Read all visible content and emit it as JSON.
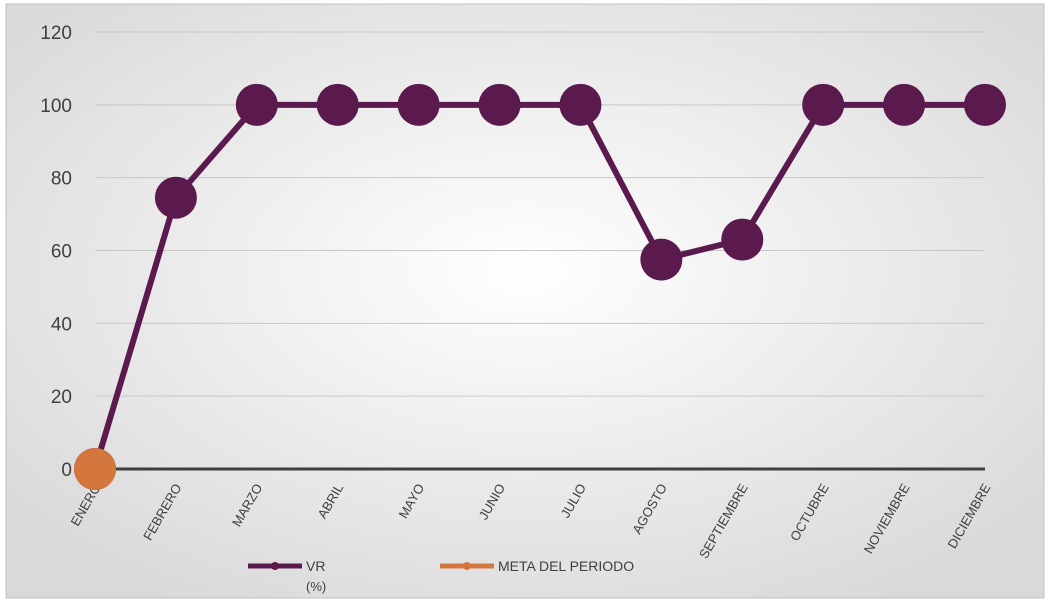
{
  "chart_data": {
    "type": "line",
    "title": "",
    "xlabel": "",
    "ylabel": "",
    "categories": [
      "ENERO",
      "FEBRERO",
      "MARZO",
      "ABRIL",
      "MAYO",
      "JUNIO",
      "JULIO",
      "AGOSTO",
      "SEPTIEMBRE",
      "OCTUBRE",
      "NOVIEMBRE",
      "DICIEMBRE"
    ],
    "ylim": [
      0,
      120
    ],
    "yticks": [
      0,
      20,
      40,
      60,
      80,
      100,
      120
    ],
    "grid": true,
    "legend_position": "bottom",
    "series": [
      {
        "name": "VR",
        "name_line2": "(%)",
        "color": "#5b1a4e",
        "values": [
          0,
          74.5,
          100,
          100,
          100,
          100,
          100,
          57.5,
          63,
          100,
          100,
          100
        ]
      },
      {
        "name": "META DEL PERIODO",
        "color": "#d4773f",
        "values": [
          0,
          null,
          null,
          null,
          null,
          null,
          null,
          null,
          null,
          null,
          null,
          null
        ]
      }
    ]
  },
  "colors": {
    "background_center": "#ffffff",
    "background_edge": "#d9d9d9",
    "border": "#bfbfbf",
    "gridline": "#c8c8c8",
    "axis_line": "#3f3f3f",
    "text": "#404040"
  }
}
